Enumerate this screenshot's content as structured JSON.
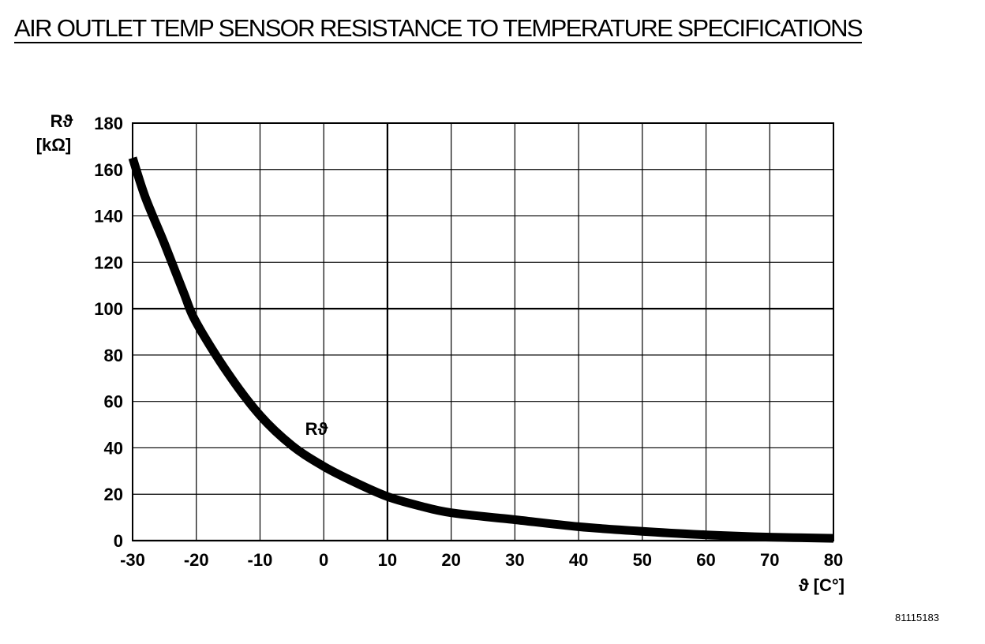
{
  "title": "AIR OUTLET TEMP SENSOR RESISTANCE TO TEMPERATURE SPECIFICATIONS",
  "figure_id": "81115183",
  "chart_data": {
    "type": "line",
    "title": "AIR OUTLET TEMP SENSOR RESISTANCE TO TEMPERATURE SPECIFICATIONS",
    "xlabel": "ϑ [C°]",
    "ylabel_line1": "Rϑ",
    "ylabel_line2": "[kΩ]",
    "xlim": [
      -30,
      80
    ],
    "ylim": [
      0,
      180
    ],
    "xticks": [
      -30,
      -20,
      -10,
      0,
      10,
      20,
      30,
      40,
      50,
      60,
      70,
      80
    ],
    "yticks": [
      0,
      20,
      40,
      60,
      80,
      100,
      120,
      140,
      160,
      180
    ],
    "grid": true,
    "curve_label": "Rϑ",
    "series": [
      {
        "name": "Rϑ",
        "x": [
          -30,
          -28,
          -25,
          -22,
          -20,
          -15,
          -10,
          -5,
          0,
          5,
          10,
          15,
          20,
          30,
          40,
          50,
          60,
          70,
          80
        ],
        "y": [
          165,
          148,
          128,
          107,
          94,
          72,
          54,
          41,
          32,
          25,
          19,
          15,
          12,
          9,
          6,
          4,
          2.5,
          1.5,
          1
        ]
      }
    ]
  }
}
